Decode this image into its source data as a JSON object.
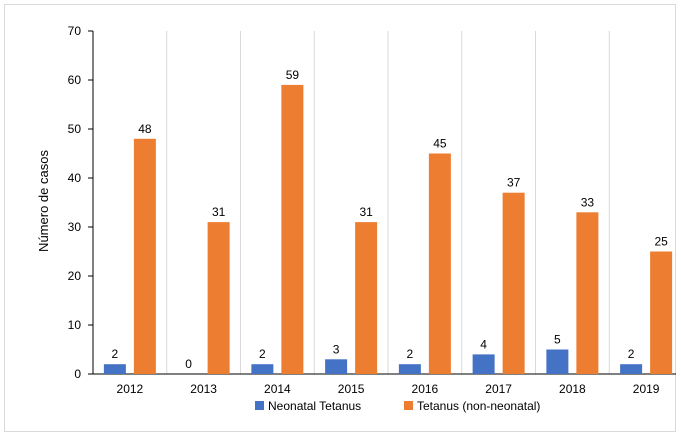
{
  "chart_data": {
    "type": "bar",
    "title": "",
    "xlabel": "",
    "ylabel": "Número de casos",
    "ylim": [
      0,
      70
    ],
    "yticks": [
      0,
      10,
      20,
      30,
      40,
      50,
      60,
      70
    ],
    "categories": [
      "2012",
      "2013",
      "2014",
      "2015",
      "2016",
      "2017",
      "2018",
      "2019"
    ],
    "series": [
      {
        "name": "Neonatal Tetanus",
        "color": "#4472C4",
        "values": [
          2,
          0,
          2,
          3,
          2,
          4,
          5,
          2
        ]
      },
      {
        "name": "Tetanus (non-neonatal)",
        "color": "#ED7D31",
        "values": [
          48,
          31,
          59,
          31,
          45,
          37,
          33,
          25
        ]
      }
    ],
    "grid": "vertical-category-separators",
    "legend": "bottom"
  }
}
